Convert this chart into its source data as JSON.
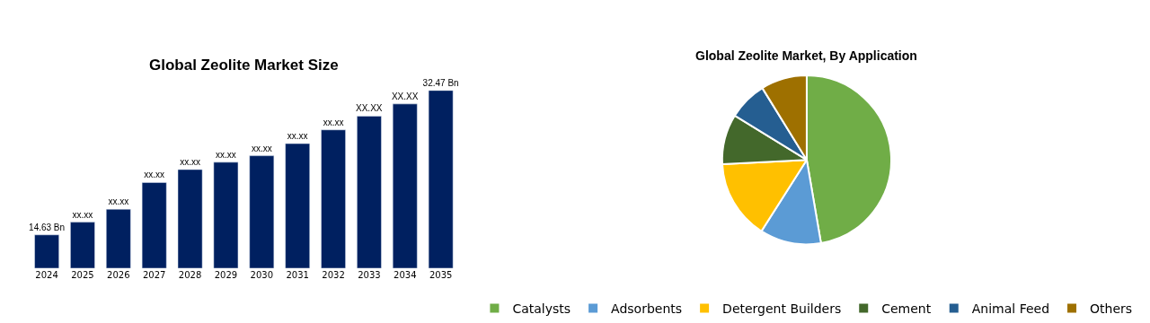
{
  "chart_data": [
    {
      "type": "bar",
      "title": "Global Zeolite Market Size",
      "categories": [
        "2024",
        "2025",
        "2026",
        "2027",
        "2028",
        "2029",
        "2030",
        "2031",
        "2032",
        "2033",
        "2034",
        "2035"
      ],
      "values": [
        14.63,
        16.2,
        17.8,
        21.1,
        22.7,
        23.6,
        24.4,
        25.9,
        27.6,
        29.3,
        30.8,
        32.47
      ],
      "color": "#002060",
      "value_labels": [
        "14.63 Bn",
        "xx.xx",
        "xx.xx",
        "xx.xx",
        "xx.xx",
        "xx.xx",
        "xx.xx",
        "xx.xx",
        "xx.xx",
        "XX.XX",
        "XX.XX",
        "32.47 Bn"
      ],
      "legend": false
    },
    {
      "type": "pie",
      "title": "Global Zeolite Market, By Application",
      "categories": [
        "Catalysts",
        "Adsorbents",
        "Detergent Builders",
        "Cement",
        "Animal Feed",
        "Others"
      ],
      "values": [
        47.3,
        11.7,
        15.2,
        9.6,
        7.4,
        8.8
      ],
      "colors": [
        "#70ad47",
        "#5b9bd5",
        "#ffc000",
        "#43682b",
        "#255e91",
        "#9e7000"
      ],
      "legend": "bottom"
    }
  ]
}
